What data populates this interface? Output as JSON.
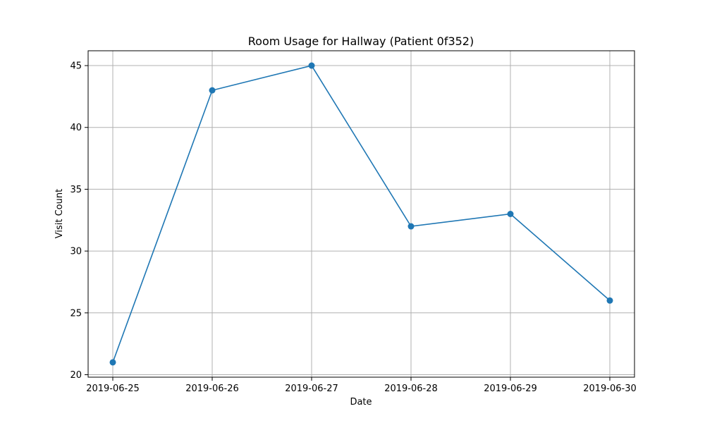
{
  "chart_data": {
    "type": "line",
    "title": "Room Usage for Hallway (Patient 0f352)",
    "xlabel": "Date",
    "ylabel": "Visit Count",
    "categories": [
      "2019-06-25",
      "2019-06-26",
      "2019-06-27",
      "2019-06-28",
      "2019-06-29",
      "2019-06-30"
    ],
    "series": [
      {
        "values": [
          21,
          43,
          45,
          32,
          33,
          26
        ],
        "color": "#1f77b4",
        "marker": "circle"
      }
    ],
    "ylim": [
      19.8,
      46.2
    ],
    "yticks": [
      20,
      25,
      30,
      35,
      40,
      45
    ],
    "grid": true,
    "legend": "none"
  }
}
